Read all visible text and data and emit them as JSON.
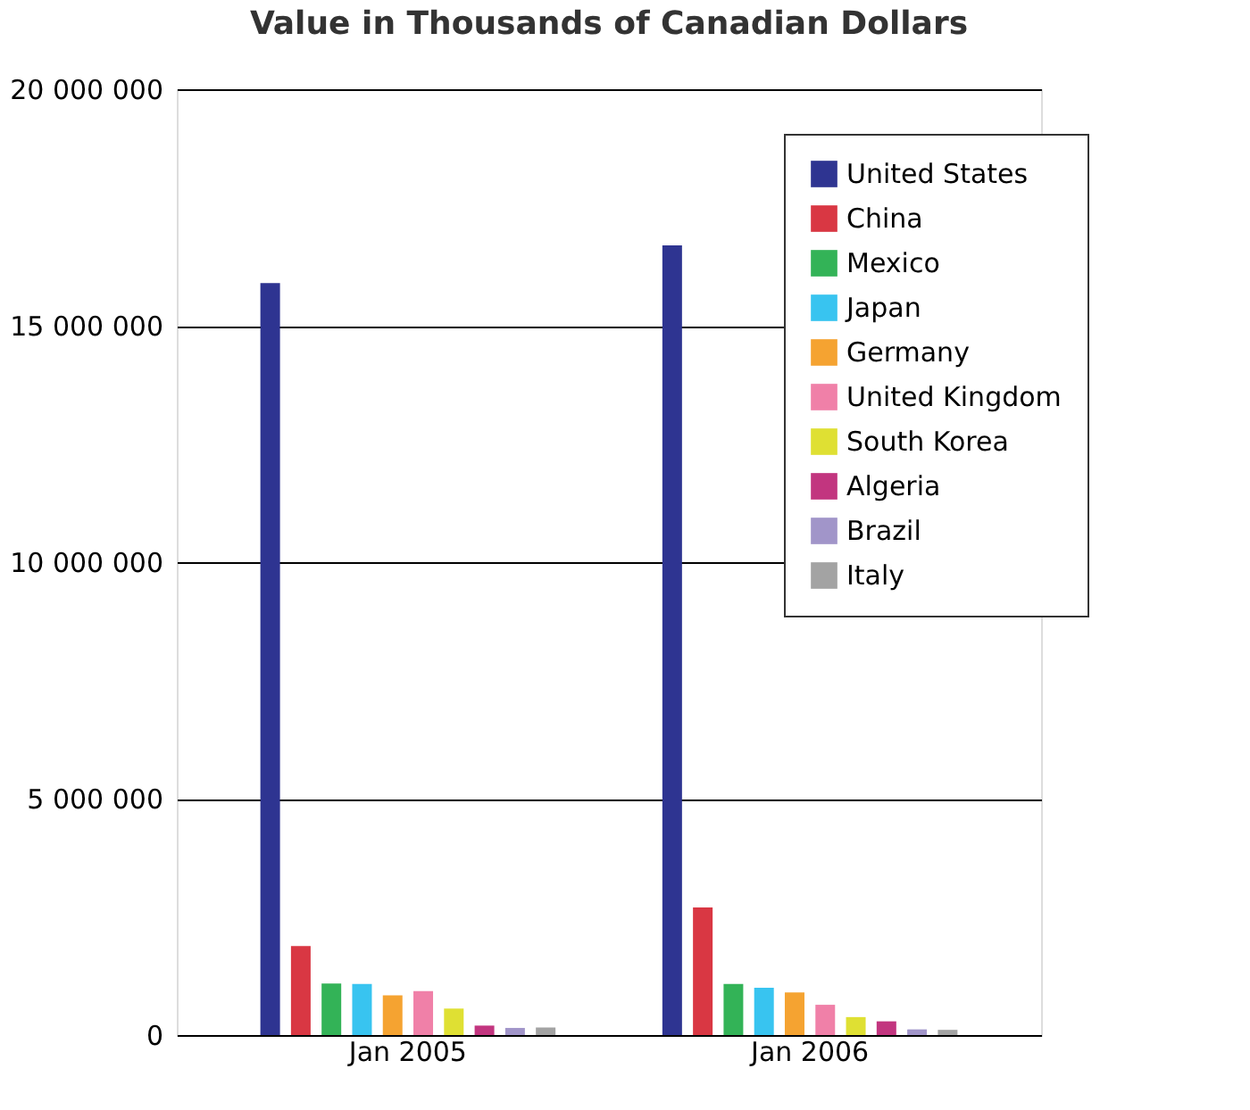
{
  "chart_data": {
    "type": "bar",
    "title": "Value in Thousands of Canadian Dollars",
    "categories": [
      "Jan 2005",
      "Jan 2006"
    ],
    "series": [
      {
        "name": "United States",
        "color": "#2e3491",
        "values": [
          15900000,
          16700000
        ]
      },
      {
        "name": "China",
        "color": "#d93743",
        "values": [
          1880000,
          2700000
        ]
      },
      {
        "name": "Mexico",
        "color": "#33b357",
        "values": [
          1090000,
          1080000
        ]
      },
      {
        "name": "Japan",
        "color": "#38c4f0",
        "values": [
          1080000,
          1000000
        ]
      },
      {
        "name": "Germany",
        "color": "#f5a331",
        "values": [
          840000,
          900000
        ]
      },
      {
        "name": "United Kingdom",
        "color": "#f080a8",
        "values": [
          930000,
          640000
        ]
      },
      {
        "name": "South Korea",
        "color": "#dfe033",
        "values": [
          560000,
          380000
        ]
      },
      {
        "name": "Algeria",
        "color": "#c2357f",
        "values": [
          200000,
          290000
        ]
      },
      {
        "name": "Brazil",
        "color": "#a195c9",
        "values": [
          150000,
          120000
        ]
      },
      {
        "name": "Italy",
        "color": "#a3a3a3",
        "values": [
          160000,
          110000
        ]
      }
    ],
    "ylim": [
      0,
      20000000
    ],
    "yticks": [
      {
        "value": 0,
        "label": "0"
      },
      {
        "value": 5000000,
        "label": "5 000 000"
      },
      {
        "value": 10000000,
        "label": "10 000 000"
      },
      {
        "value": 15000000,
        "label": "15 000 000"
      },
      {
        "value": 20000000,
        "label": "20 000 000"
      }
    ],
    "grid": "y",
    "legend": "top right"
  }
}
